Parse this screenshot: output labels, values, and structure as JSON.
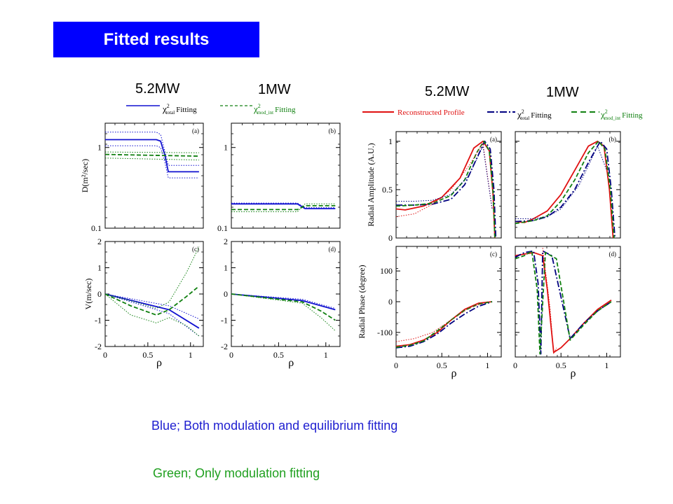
{
  "page_title": "Fitted results",
  "colors": {
    "title_bg": "#0000ff",
    "blue": "#1010d0",
    "blue_dark": "#000080",
    "green": "#108010",
    "red": "#e01010",
    "note_blue": "#2020d0",
    "note_green": "#20a020"
  },
  "power_labels": {
    "left_a": "5.2MW",
    "left_b": "1MW",
    "right_a": "5.2MW",
    "right_b": "1MW"
  },
  "legend_left": {
    "total": {
      "chi": "χ",
      "sup": "2",
      "sub": "total",
      "text": "Fitting"
    },
    "mod": {
      "chi": "χ",
      "sup": "2",
      "sub": "mod_int",
      "text": "Fitting"
    }
  },
  "legend_right": {
    "recon": "Reconstructed Profile",
    "total": {
      "chi": "χ",
      "sup": "2",
      "sub": "total",
      "text": "Fitting"
    },
    "mod": {
      "chi": "χ",
      "sup": "2",
      "sub": "mod_int",
      "text": "Fitting"
    }
  },
  "notes": {
    "blue": "Blue; Both modulation and equilibrium fitting",
    "green": "Green; Only  modulation fitting"
  },
  "chart_data": [
    {
      "id": "D-5.2MW",
      "type": "line",
      "panel_label": "(a)",
      "ylabel": "D(m²/sec)",
      "yscale": "log",
      "ylim": [
        0.1,
        2.0
      ],
      "xlim": [
        0,
        1.15
      ],
      "yticks": [
        {
          "v": 0.1,
          "t": "0.1"
        },
        {
          "v": 1,
          "t": "1"
        }
      ],
      "series": [
        {
          "color": "blue",
          "style": "solid",
          "x": [
            0,
            0.6,
            0.65,
            0.7,
            0.74,
            1.1
          ],
          "y": [
            1.25,
            1.25,
            1.2,
            0.8,
            0.5,
            0.5
          ]
        },
        {
          "color": "blue",
          "style": "dotted",
          "x": [
            0,
            0.6,
            0.65,
            0.7,
            0.74,
            1.1
          ],
          "y": [
            1.55,
            1.55,
            1.45,
            0.9,
            0.6,
            0.6
          ]
        },
        {
          "color": "blue",
          "style": "dotted",
          "x": [
            0,
            0.6,
            0.65,
            0.7,
            0.74,
            1.1
          ],
          "y": [
            1.05,
            1.05,
            1.0,
            0.65,
            0.42,
            0.42
          ]
        },
        {
          "color": "green",
          "style": "dashed",
          "x": [
            0,
            1.1
          ],
          "y": [
            0.82,
            0.78
          ]
        },
        {
          "color": "green",
          "style": "dotted",
          "x": [
            0,
            1.1
          ],
          "y": [
            0.88,
            0.86
          ]
        },
        {
          "color": "green",
          "style": "dotted",
          "x": [
            0,
            1.1
          ],
          "y": [
            0.74,
            0.7
          ]
        }
      ]
    },
    {
      "id": "D-1MW",
      "type": "line",
      "panel_label": "(b)",
      "ylabel": "",
      "yscale": "log",
      "ylim": [
        0.1,
        2.0
      ],
      "xlim": [
        0,
        1.15
      ],
      "yticks": [
        {
          "v": 0.1,
          "t": "0.1"
        },
        {
          "v": 1,
          "t": "1"
        }
      ],
      "series": [
        {
          "color": "blue",
          "style": "solid",
          "x": [
            0,
            0.7,
            0.78,
            1.1
          ],
          "y": [
            0.2,
            0.2,
            0.175,
            0.175
          ]
        },
        {
          "color": "blue",
          "style": "dotted",
          "x": [
            0,
            0.7,
            0.78,
            1.1
          ],
          "y": [
            0.205,
            0.205,
            0.18,
            0.18
          ]
        },
        {
          "color": "green",
          "style": "dashed",
          "x": [
            0,
            0.7,
            0.78,
            1.1
          ],
          "y": [
            0.17,
            0.17,
            0.19,
            0.19
          ]
        },
        {
          "color": "green",
          "style": "dotted",
          "x": [
            0,
            0.7,
            0.78,
            1.1
          ],
          "y": [
            0.16,
            0.16,
            0.2,
            0.2
          ]
        }
      ]
    },
    {
      "id": "V-5.2MW",
      "type": "line",
      "panel_label": "(c)",
      "ylabel": "V(m/sec)",
      "xlabel": "ρ",
      "yscale": "linear",
      "ylim": [
        -2,
        2
      ],
      "xlim": [
        0,
        1.15
      ],
      "yticks": [
        {
          "v": -2,
          "t": "-2"
        },
        {
          "v": -1,
          "t": "-1"
        },
        {
          "v": 0,
          "t": "0"
        },
        {
          "v": 1,
          "t": "1"
        },
        {
          "v": 2,
          "t": "2"
        }
      ],
      "xticks": [
        {
          "v": 0,
          "t": "0"
        },
        {
          "v": 0.5,
          "t": "0.5"
        },
        {
          "v": 1,
          "t": "1"
        }
      ],
      "series": [
        {
          "color": "blue",
          "style": "solid",
          "x": [
            0,
            0.75,
            1.1
          ],
          "y": [
            0.0,
            -0.6,
            -1.3
          ]
        },
        {
          "color": "blue",
          "style": "dotted",
          "x": [
            0,
            0.75,
            1.1
          ],
          "y": [
            0.0,
            -0.45,
            -0.95
          ]
        },
        {
          "color": "blue",
          "style": "dotted",
          "x": [
            0,
            0.75,
            1.1
          ],
          "y": [
            0.0,
            -0.75,
            -1.6
          ]
        },
        {
          "color": "green",
          "style": "dashed",
          "x": [
            0,
            0.3,
            0.6,
            0.75,
            0.95,
            1.1
          ],
          "y": [
            0.0,
            -0.45,
            -0.8,
            -0.6,
            -0.1,
            0.3
          ]
        },
        {
          "color": "green",
          "style": "dotted",
          "x": [
            0,
            0.35,
            0.6,
            0.75,
            0.95,
            1.1
          ],
          "y": [
            0.0,
            -0.3,
            -0.55,
            -0.3,
            0.8,
            1.8
          ]
        },
        {
          "color": "green",
          "style": "dotted",
          "x": [
            0,
            0.3,
            0.6,
            0.75,
            0.95,
            1.1
          ],
          "y": [
            0.0,
            -0.8,
            -1.1,
            -0.9,
            -1.2,
            -1.6
          ]
        }
      ]
    },
    {
      "id": "V-1MW",
      "type": "line",
      "panel_label": "(d)",
      "ylabel": "",
      "xlabel": "ρ",
      "yscale": "linear",
      "ylim": [
        -2,
        2
      ],
      "xlim": [
        0,
        1.15
      ],
      "yticks": [
        {
          "v": -2,
          "t": "-2"
        },
        {
          "v": -1,
          "t": "-1"
        },
        {
          "v": 0,
          "t": "0"
        },
        {
          "v": 1,
          "t": "1"
        },
        {
          "v": 2,
          "t": "2"
        }
      ],
      "xticks": [
        {
          "v": 0,
          "t": "0"
        },
        {
          "v": 0.5,
          "t": "0.5"
        },
        {
          "v": 1,
          "t": "1"
        }
      ],
      "series": [
        {
          "color": "blue",
          "style": "solid",
          "x": [
            0,
            0.75,
            1.1
          ],
          "y": [
            0.0,
            -0.25,
            -0.6
          ]
        },
        {
          "color": "blue",
          "style": "dotted",
          "x": [
            0,
            0.75,
            1.1
          ],
          "y": [
            0.0,
            -0.2,
            -0.55
          ]
        },
        {
          "color": "green",
          "style": "dashed",
          "x": [
            0,
            0.75,
            0.95,
            1.1
          ],
          "y": [
            0.0,
            -0.3,
            -0.65,
            -1.0
          ]
        },
        {
          "color": "green",
          "style": "dotted",
          "x": [
            0,
            0.75,
            0.95,
            1.1
          ],
          "y": [
            0.0,
            -0.35,
            -0.9,
            -1.4
          ]
        }
      ]
    },
    {
      "id": "Amp-5.2MW",
      "type": "line",
      "panel_label": "(a)",
      "ylabel": "Radial Amplitude (A.U.)",
      "yscale": "linear",
      "ylim": [
        0,
        1.1
      ],
      "xlim": [
        0,
        1.15
      ],
      "yticks": [
        {
          "v": 0,
          "t": "0"
        },
        {
          "v": 0.5,
          "t": "0.5"
        },
        {
          "v": 1,
          "t": "1"
        }
      ],
      "series": [
        {
          "color": "red",
          "style": "solid",
          "x": [
            0,
            0.1,
            0.3,
            0.5,
            0.7,
            0.85,
            0.95,
            1.02,
            1.06,
            1.08
          ],
          "y": [
            0.3,
            0.29,
            0.33,
            0.42,
            0.62,
            0.93,
            1.0,
            0.9,
            0.45,
            0.0
          ]
        },
        {
          "color": "blue_dark",
          "style": "dashdot",
          "x": [
            0,
            0.2,
            0.4,
            0.6,
            0.75,
            0.88,
            0.97,
            1.03,
            1.07,
            1.09
          ],
          "y": [
            0.34,
            0.34,
            0.35,
            0.4,
            0.55,
            0.82,
            1.0,
            0.92,
            0.5,
            0.0
          ]
        },
        {
          "color": "green",
          "style": "dashed",
          "x": [
            0,
            0.2,
            0.4,
            0.6,
            0.75,
            0.88,
            0.96,
            1.02,
            1.06,
            1.08
          ],
          "y": [
            0.33,
            0.34,
            0.36,
            0.44,
            0.6,
            0.88,
            1.0,
            0.9,
            0.48,
            0.0
          ]
        },
        {
          "color": "red",
          "style": "dotted",
          "x": [
            0,
            0.2,
            0.4,
            0.6,
            0.8,
            0.95,
            1.05
          ],
          "y": [
            0.22,
            0.25,
            0.35,
            0.5,
            0.75,
            0.98,
            0.3
          ]
        },
        {
          "color": "blue_dark",
          "style": "dotted",
          "x": [
            0,
            0.2,
            0.4,
            0.6,
            0.8,
            0.95,
            1.05
          ],
          "y": [
            0.38,
            0.38,
            0.39,
            0.45,
            0.65,
            0.95,
            0.3
          ]
        }
      ]
    },
    {
      "id": "Amp-1MW",
      "type": "line",
      "panel_label": "(b)",
      "ylabel": "",
      "yscale": "linear",
      "ylim": [
        0,
        1.1
      ],
      "xlim": [
        0,
        1.15
      ],
      "yticks": [
        {
          "v": 0,
          "t": ""
        },
        {
          "v": 0.5,
          "t": ""
        },
        {
          "v": 1,
          "t": ""
        }
      ],
      "series": [
        {
          "color": "red",
          "style": "solid",
          "x": [
            0,
            0.1,
            0.2,
            0.35,
            0.5,
            0.65,
            0.8,
            0.9,
            0.97,
            1.03,
            1.07
          ],
          "y": [
            0.17,
            0.16,
            0.2,
            0.28,
            0.45,
            0.7,
            0.95,
            1.0,
            0.95,
            0.5,
            0.0
          ]
        },
        {
          "color": "blue_dark",
          "style": "dashdot",
          "x": [
            0,
            0.2,
            0.35,
            0.5,
            0.65,
            0.8,
            0.93,
            1.0,
            1.05,
            1.09
          ],
          "y": [
            0.17,
            0.18,
            0.22,
            0.32,
            0.5,
            0.78,
            1.0,
            0.92,
            0.5,
            0.0
          ]
        },
        {
          "color": "green",
          "style": "dashed",
          "x": [
            0,
            0.2,
            0.35,
            0.5,
            0.65,
            0.8,
            0.91,
            0.98,
            1.04,
            1.08
          ],
          "y": [
            0.15,
            0.18,
            0.23,
            0.38,
            0.6,
            0.88,
            1.0,
            0.92,
            0.5,
            0.0
          ]
        },
        {
          "color": "blue_dark",
          "style": "dotted",
          "x": [
            0,
            0.2,
            0.35,
            0.5,
            0.7,
            0.9,
            1.0
          ],
          "y": [
            0.2,
            0.2,
            0.22,
            0.3,
            0.55,
            0.95,
            0.7
          ]
        }
      ]
    },
    {
      "id": "Phase-5.2MW",
      "type": "line",
      "panel_label": "(c)",
      "ylabel": "Radial Phase (degree)",
      "xlabel": "ρ",
      "yscale": "linear",
      "ylim": [
        -180,
        180
      ],
      "xlim": [
        0,
        1.15
      ],
      "yticks": [
        {
          "v": -100,
          "t": "-100"
        },
        {
          "v": 0,
          "t": "0"
        },
        {
          "v": 100,
          "t": "100"
        }
      ],
      "xticks": [
        {
          "v": 0,
          "t": "0"
        },
        {
          "v": 0.5,
          "t": "0.5"
        },
        {
          "v": 1,
          "t": "1"
        }
      ],
      "series": [
        {
          "color": "red",
          "style": "solid",
          "x": [
            0,
            0.15,
            0.3,
            0.45,
            0.6,
            0.75,
            0.9,
            1.05
          ],
          "y": [
            -145,
            -140,
            -125,
            -100,
            -60,
            -25,
            -5,
            0
          ]
        },
        {
          "color": "blue_dark",
          "style": "dashdot",
          "x": [
            0,
            0.15,
            0.3,
            0.45,
            0.6,
            0.75,
            0.9,
            1.05
          ],
          "y": [
            -150,
            -145,
            -130,
            -105,
            -70,
            -40,
            -15,
            0
          ]
        },
        {
          "color": "green",
          "style": "dashed",
          "x": [
            0,
            0.15,
            0.3,
            0.45,
            0.6,
            0.75,
            0.9,
            1.05
          ],
          "y": [
            -148,
            -142,
            -128,
            -95,
            -60,
            -28,
            -8,
            0
          ]
        },
        {
          "color": "red",
          "style": "dotted",
          "x": [
            0,
            0.2,
            0.4,
            0.6,
            0.8,
            1.0
          ],
          "y": [
            -130,
            -120,
            -100,
            -60,
            -20,
            0
          ]
        }
      ]
    },
    {
      "id": "Phase-1MW",
      "type": "line",
      "panel_label": "(d)",
      "ylabel": "",
      "xlabel": "ρ",
      "yscale": "linear",
      "ylim": [
        -180,
        180
      ],
      "xlim": [
        0,
        1.15
      ],
      "yticks": [
        {
          "v": -100,
          "t": ""
        },
        {
          "v": 0,
          "t": ""
        },
        {
          "v": 100,
          "t": ""
        }
      ],
      "xticks": [
        {
          "v": 0,
          "t": "0"
        },
        {
          "v": 0.5,
          "t": "0.5"
        },
        {
          "v": 1,
          "t": "1"
        }
      ],
      "series": [
        {
          "color": "red",
          "style": "solid",
          "x": [
            0,
            0.1,
            0.2,
            0.3,
            0.35,
            0.42,
            0.5,
            0.6,
            0.75,
            0.9,
            1.05
          ],
          "y": [
            150,
            155,
            160,
            150,
            40,
            -165,
            -150,
            -120,
            -70,
            -25,
            5
          ]
        },
        {
          "color": "blue_dark",
          "style": "dashdot",
          "x": [
            0,
            0.1,
            0.2,
            0.25,
            0.28,
            0.3,
            0.4,
            0.6,
            0.75,
            0.9,
            1.05
          ],
          "y": [
            145,
            160,
            165,
            60,
            -170,
            165,
            150,
            -120,
            -70,
            -30,
            0
          ]
        },
        {
          "color": "green",
          "style": "dashed",
          "x": [
            0,
            0.1,
            0.18,
            0.24,
            0.27,
            0.33,
            0.45,
            0.6,
            0.75,
            0.9,
            1.05
          ],
          "y": [
            140,
            150,
            165,
            40,
            -170,
            160,
            140,
            -125,
            -75,
            -30,
            0
          ]
        },
        {
          "color": "red",
          "style": "dotted",
          "x": [
            0.3,
            0.38,
            0.42,
            0.45
          ],
          "y": [
            175,
            -20,
            -170,
            -150
          ]
        }
      ]
    }
  ]
}
